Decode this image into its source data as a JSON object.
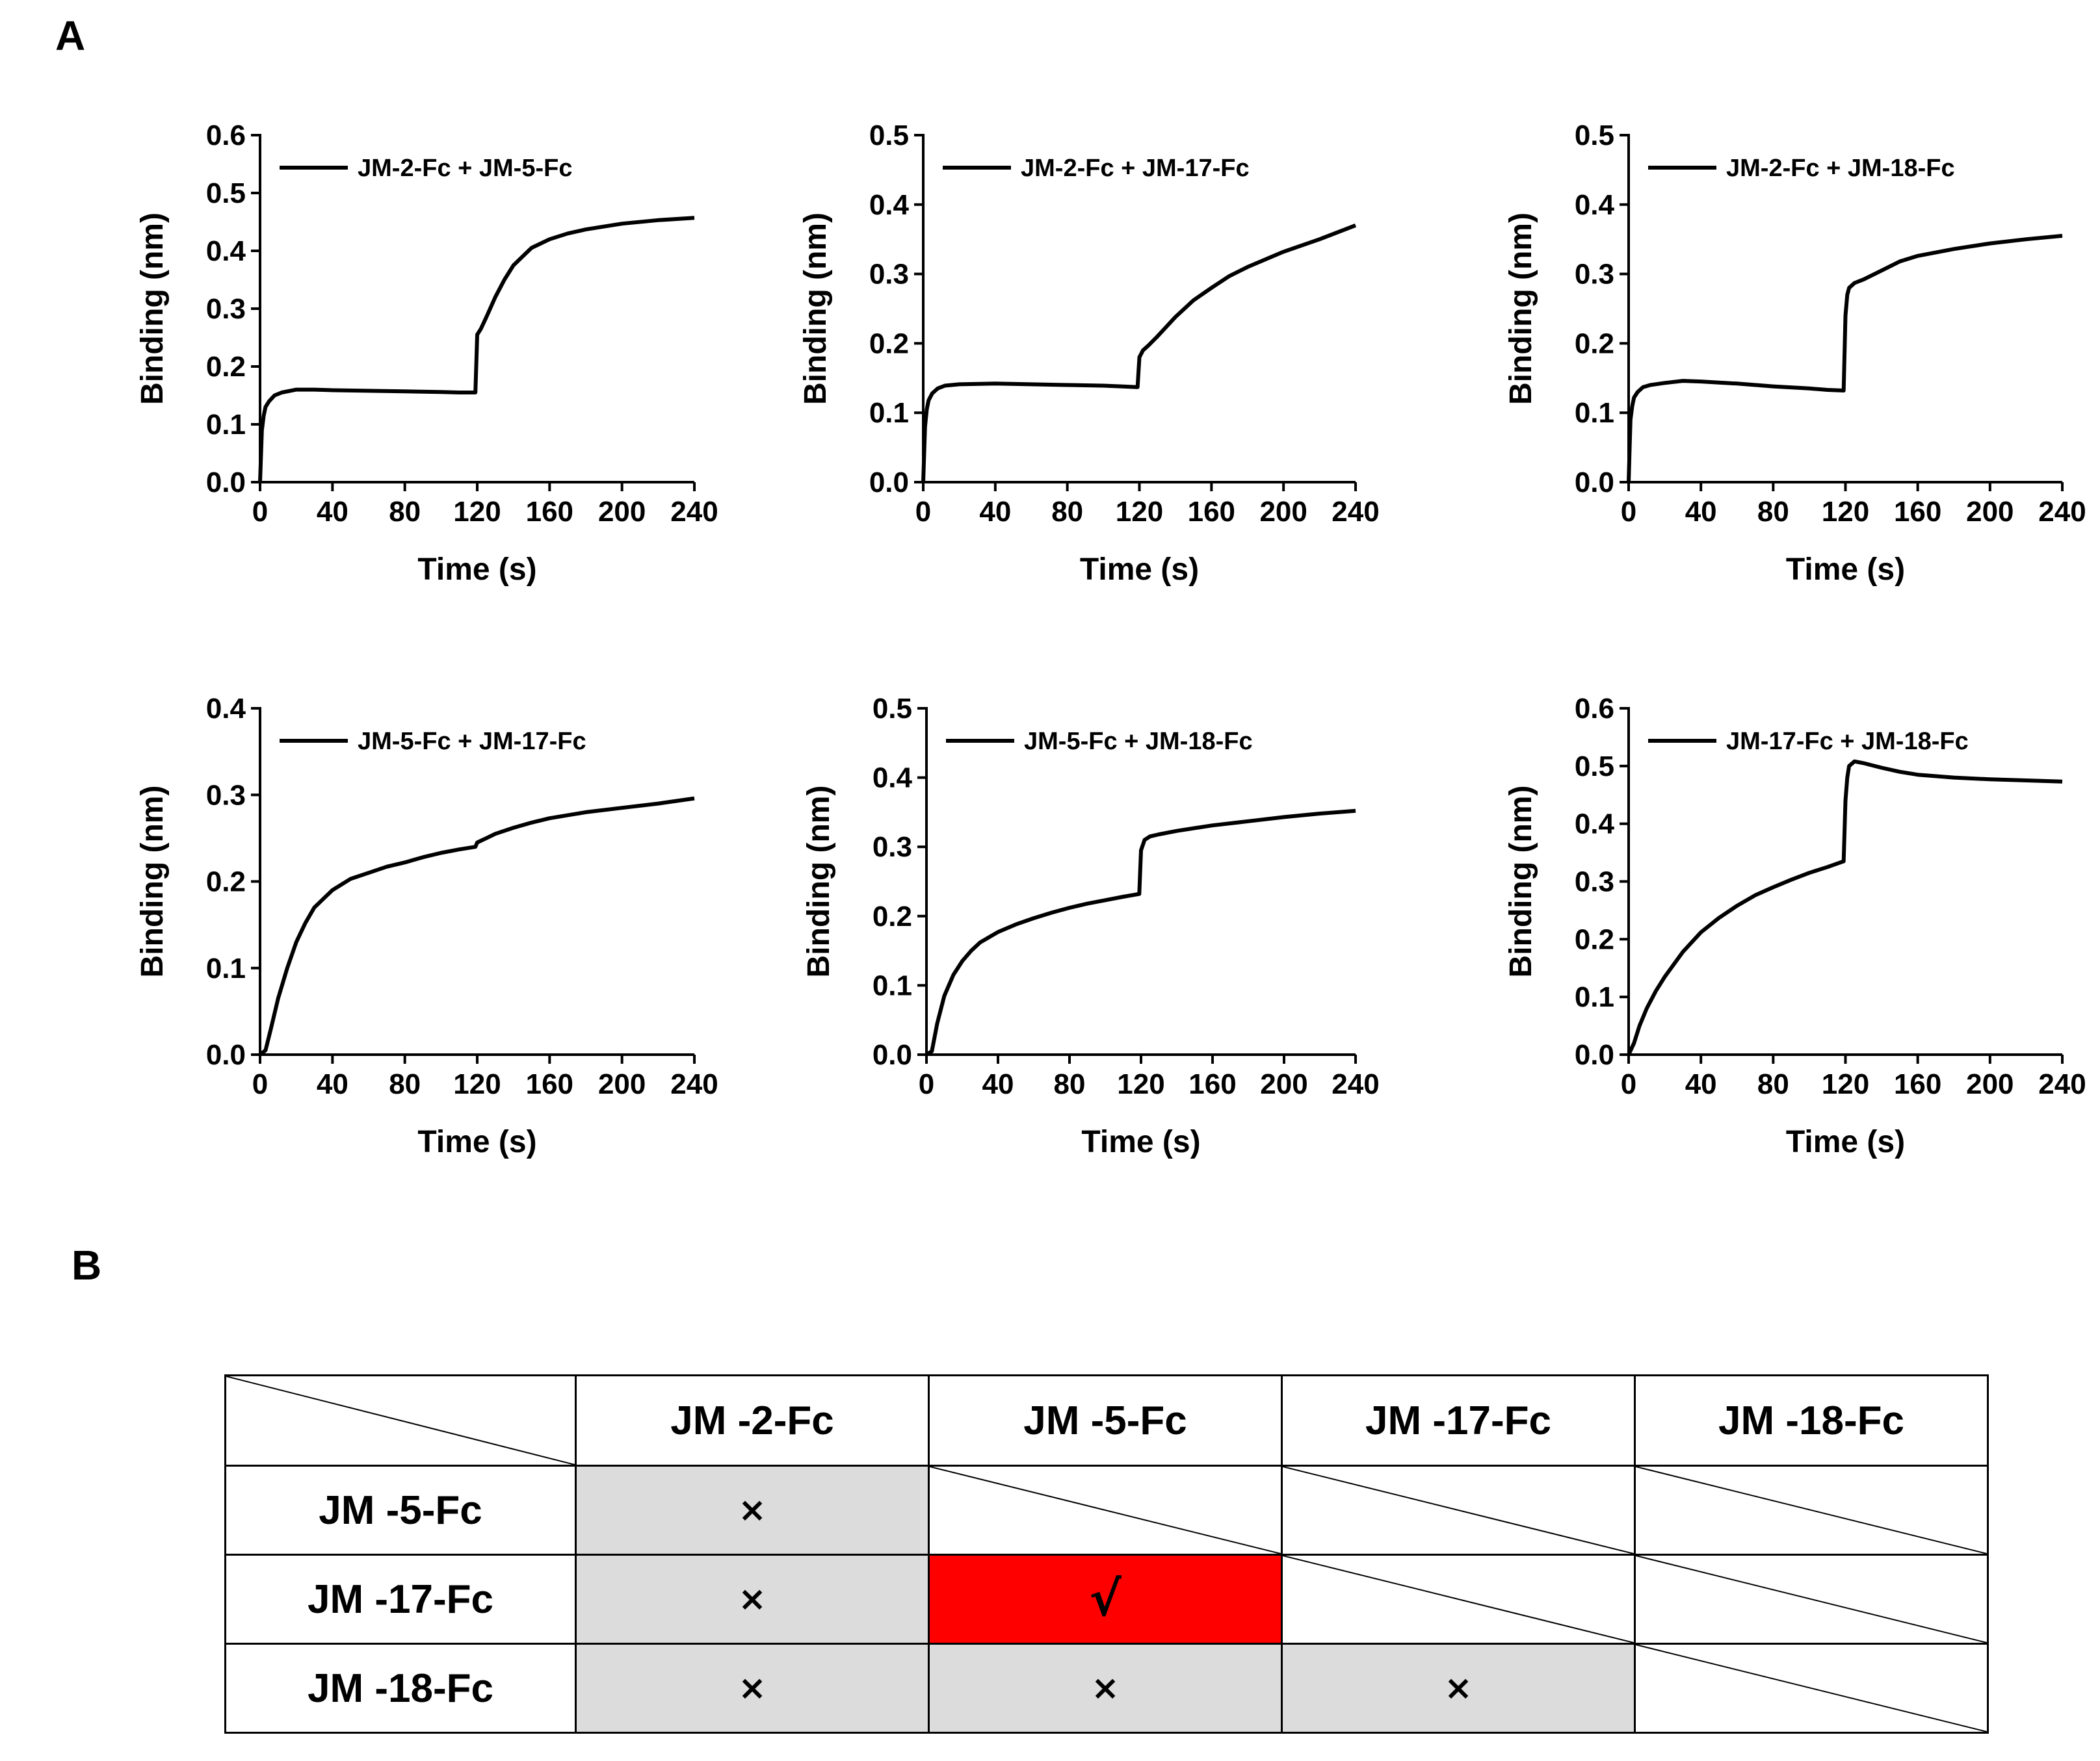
{
  "panel_labels": {
    "a": "A",
    "b": "B"
  },
  "chart_data": [
    {
      "type": "line",
      "legend": "JM-2-Fc + JM-5-Fc",
      "xlabel": "Time (s)",
      "ylabel": "Binding (nm)",
      "xlim": [
        0,
        240
      ],
      "ylim": [
        0,
        0.6
      ],
      "xticks": [
        "0",
        "40",
        "80",
        "120",
        "160",
        "200",
        "240"
      ],
      "yticks": [
        "0.0",
        "0.1",
        "0.2",
        "0.3",
        "0.4",
        "0.5",
        "0.6"
      ],
      "series": [
        {
          "x": [
            0,
            1,
            2,
            3,
            5,
            8,
            12,
            20,
            30,
            40,
            60,
            80,
            100,
            110,
            119,
            120,
            122,
            125,
            130,
            135,
            140,
            150,
            160,
            170,
            180,
            200,
            220,
            240
          ],
          "y": [
            0,
            0.09,
            0.115,
            0.13,
            0.14,
            0.15,
            0.155,
            0.16,
            0.16,
            0.159,
            0.158,
            0.157,
            0.156,
            0.155,
            0.155,
            0.255,
            0.265,
            0.285,
            0.32,
            0.35,
            0.375,
            0.405,
            0.42,
            0.43,
            0.437,
            0.447,
            0.453,
            0.457
          ]
        }
      ]
    },
    {
      "type": "line",
      "legend": "JM-2-Fc + JM-17-Fc",
      "xlabel": "Time (s)",
      "ylabel": "Binding (nm)",
      "xlim": [
        0,
        240
      ],
      "ylim": [
        0,
        0.5
      ],
      "xticks": [
        "0",
        "40",
        "80",
        "120",
        "160",
        "200",
        "240"
      ],
      "yticks": [
        "0.0",
        "0.1",
        "0.2",
        "0.3",
        "0.4",
        "0.5"
      ],
      "series": [
        {
          "x": [
            0,
            1,
            2,
            3,
            5,
            8,
            12,
            20,
            40,
            60,
            80,
            100,
            110,
            119,
            120,
            122,
            125,
            130,
            140,
            150,
            160,
            170,
            180,
            200,
            220,
            240
          ],
          "y": [
            0,
            0.08,
            0.105,
            0.118,
            0.128,
            0.135,
            0.139,
            0.141,
            0.142,
            0.141,
            0.14,
            0.139,
            0.138,
            0.137,
            0.18,
            0.19,
            0.197,
            0.21,
            0.238,
            0.262,
            0.28,
            0.297,
            0.31,
            0.332,
            0.35,
            0.37
          ]
        }
      ]
    },
    {
      "type": "line",
      "legend": "JM-2-Fc + JM-18-Fc",
      "xlabel": "Time (s)",
      "ylabel": "Binding (nm)",
      "xlim": [
        0,
        240
      ],
      "ylim": [
        0,
        0.5
      ],
      "xticks": [
        "0",
        "40",
        "80",
        "120",
        "160",
        "200",
        "240"
      ],
      "yticks": [
        "0.0",
        "0.1",
        "0.2",
        "0.3",
        "0.4",
        "0.5"
      ],
      "series": [
        {
          "x": [
            0,
            1,
            2,
            3,
            5,
            8,
            12,
            20,
            30,
            40,
            60,
            80,
            100,
            110,
            119,
            120,
            121,
            122,
            125,
            130,
            140,
            150,
            160,
            180,
            200,
            220,
            240
          ],
          "y": [
            0,
            0.09,
            0.11,
            0.122,
            0.13,
            0.137,
            0.14,
            0.143,
            0.146,
            0.145,
            0.142,
            0.138,
            0.135,
            0.133,
            0.132,
            0.24,
            0.27,
            0.28,
            0.287,
            0.292,
            0.305,
            0.318,
            0.326,
            0.336,
            0.344,
            0.35,
            0.355
          ]
        }
      ]
    },
    {
      "type": "line",
      "legend": "JM-5-Fc + JM-17-Fc",
      "xlabel": "Time (s)",
      "ylabel": "Binding (nm)",
      "xlim": [
        0,
        240
      ],
      "ylim": [
        0,
        0.4
      ],
      "xticks": [
        "0",
        "40",
        "80",
        "120",
        "160",
        "200",
        "240"
      ],
      "yticks": [
        "0.0",
        "0.1",
        "0.2",
        "0.3",
        "0.4"
      ],
      "series": [
        {
          "x": [
            0,
            3,
            6,
            10,
            15,
            20,
            25,
            30,
            40,
            50,
            60,
            70,
            80,
            90,
            100,
            110,
            119,
            120,
            125,
            130,
            140,
            150,
            160,
            180,
            200,
            220,
            240
          ],
          "y": [
            0,
            0.005,
            0.03,
            0.065,
            0.1,
            0.13,
            0.152,
            0.17,
            0.19,
            0.203,
            0.21,
            0.217,
            0.222,
            0.228,
            0.233,
            0.237,
            0.24,
            0.245,
            0.25,
            0.255,
            0.262,
            0.268,
            0.273,
            0.28,
            0.285,
            0.29,
            0.296
          ]
        }
      ]
    },
    {
      "type": "line",
      "legend": "JM-5-Fc + JM-18-Fc",
      "xlabel": "Time (s)",
      "ylabel": "Binding (nm)",
      "xlim": [
        0,
        240
      ],
      "ylim": [
        0,
        0.5
      ],
      "xticks": [
        "0",
        "40",
        "80",
        "120",
        "160",
        "200",
        "240"
      ],
      "yticks": [
        "0.0",
        "0.1",
        "0.2",
        "0.3",
        "0.4",
        "0.5"
      ],
      "series": [
        {
          "x": [
            0,
            3,
            6,
            10,
            15,
            20,
            25,
            30,
            40,
            50,
            60,
            70,
            80,
            90,
            100,
            110,
            119,
            120,
            122,
            125,
            130,
            140,
            150,
            160,
            180,
            200,
            220,
            240
          ],
          "y": [
            0,
            0.005,
            0.045,
            0.085,
            0.115,
            0.135,
            0.15,
            0.162,
            0.177,
            0.188,
            0.197,
            0.205,
            0.212,
            0.218,
            0.223,
            0.228,
            0.232,
            0.295,
            0.31,
            0.315,
            0.318,
            0.323,
            0.327,
            0.331,
            0.337,
            0.343,
            0.348,
            0.352
          ]
        }
      ]
    },
    {
      "type": "line",
      "legend": "JM-17-Fc + JM-18-Fc",
      "xlabel": "Time (s)",
      "ylabel": "Binding (nm)",
      "xlim": [
        0,
        240
      ],
      "ylim": [
        0,
        0.6
      ],
      "xticks": [
        "0",
        "40",
        "80",
        "120",
        "160",
        "200",
        "240"
      ],
      "yticks": [
        "0.0",
        "0.1",
        "0.2",
        "0.3",
        "0.4",
        "0.5",
        "0.6"
      ],
      "series": [
        {
          "x": [
            0,
            3,
            6,
            10,
            15,
            20,
            30,
            40,
            50,
            60,
            70,
            80,
            90,
            100,
            110,
            119,
            120,
            121,
            122,
            125,
            130,
            140,
            150,
            160,
            180,
            200,
            220,
            240
          ],
          "y": [
            0,
            0.02,
            0.05,
            0.08,
            0.11,
            0.135,
            0.178,
            0.212,
            0.237,
            0.258,
            0.276,
            0.29,
            0.303,
            0.315,
            0.325,
            0.335,
            0.44,
            0.48,
            0.5,
            0.508,
            0.505,
            0.497,
            0.49,
            0.485,
            0.48,
            0.477,
            0.475,
            0.473
          ]
        }
      ]
    }
  ],
  "table": {
    "columns": [
      "JM -2-Fc",
      "JM -5-Fc",
      "JM -17-Fc",
      "JM -18-Fc"
    ],
    "rows": [
      {
        "label": "JM -5-Fc",
        "cells": [
          "×",
          "",
          "",
          ""
        ]
      },
      {
        "label": "JM -17-Fc",
        "cells": [
          "×",
          "√",
          "",
          ""
        ]
      },
      {
        "label": "JM -18-Fc",
        "cells": [
          "×",
          "×",
          "×",
          ""
        ]
      }
    ],
    "colors": {
      "gray": "#dcdcdc",
      "positive": "#ff0000",
      "empty": "#ffffff"
    }
  }
}
